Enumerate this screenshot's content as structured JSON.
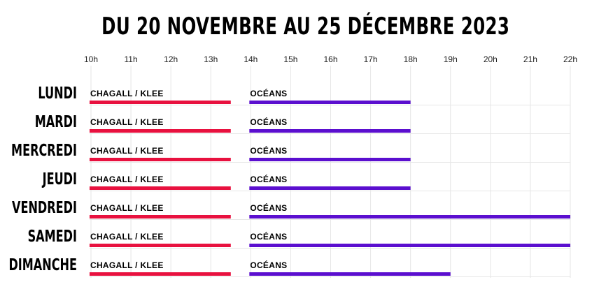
{
  "chart_data": {
    "type": "bar",
    "orientation": "horizontal-timeline",
    "title": "DU 20 NOVEMBRE AU 25 DÉCEMBRE 2023",
    "x_ticks": [
      "10h",
      "11h",
      "12h",
      "13h",
      "14h",
      "15h",
      "16h",
      "17h",
      "18h",
      "19h",
      "20h",
      "21h",
      "22h"
    ],
    "xlim": [
      10,
      22
    ],
    "grid": "vertical",
    "categories": [
      "LUNDI",
      "MARDI",
      "MERCREDI",
      "JEUDI",
      "VENDREDI",
      "SAMEDI",
      "DIMANCHE"
    ],
    "series": [
      {
        "name": "CHAGALL / KLEE",
        "color": "#e8113f",
        "values": [
          [
            10,
            13.5
          ],
          [
            10,
            13.5
          ],
          [
            10,
            13.5
          ],
          [
            10,
            13.5
          ],
          [
            10,
            13.5
          ],
          [
            10,
            13.5
          ],
          [
            10,
            13.5
          ]
        ]
      },
      {
        "name": "OCÉANS",
        "color": "#5b0fcf",
        "values": [
          [
            14,
            18
          ],
          [
            14,
            18
          ],
          [
            14,
            18
          ],
          [
            14,
            18
          ],
          [
            14,
            22
          ],
          [
            14,
            22
          ],
          [
            14,
            19
          ]
        ]
      }
    ]
  }
}
